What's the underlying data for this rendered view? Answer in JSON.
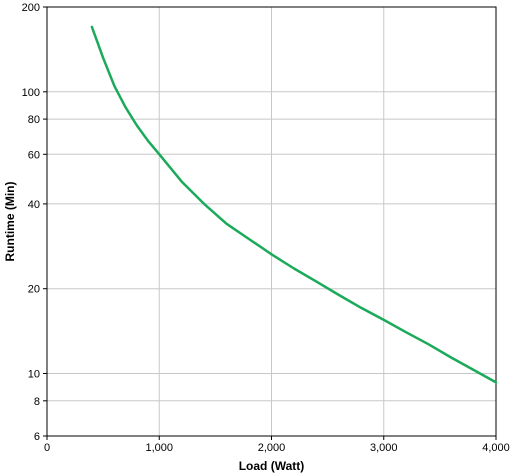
{
  "chart_data": {
    "type": "line",
    "xlabel": "Load (Watt)",
    "ylabel": "Runtime (Min)",
    "xlim": [
      0,
      4000
    ],
    "ylim": [
      6,
      200
    ],
    "yscale": "log",
    "grid": true,
    "x_ticks": [
      {
        "value": 0,
        "label": "0"
      },
      {
        "value": 1000,
        "label": "1,000"
      },
      {
        "value": 2000,
        "label": "2,000"
      },
      {
        "value": 3000,
        "label": "3,000"
      },
      {
        "value": 4000,
        "label": "4,000"
      }
    ],
    "y_ticks": [
      {
        "value": 6,
        "label": "6"
      },
      {
        "value": 8,
        "label": "8"
      },
      {
        "value": 10,
        "label": "10"
      },
      {
        "value": 20,
        "label": "20"
      },
      {
        "value": 40,
        "label": "40"
      },
      {
        "value": 60,
        "label": "60"
      },
      {
        "value": 80,
        "label": "80"
      },
      {
        "value": 100,
        "label": "100"
      },
      {
        "value": 200,
        "label": "200"
      }
    ],
    "series": [
      {
        "color": "#1aaa5a",
        "points": [
          [
            400,
            170
          ],
          [
            500,
            132
          ],
          [
            600,
            105
          ],
          [
            700,
            88
          ],
          [
            800,
            76
          ],
          [
            900,
            67
          ],
          [
            1000,
            60
          ],
          [
            1200,
            48
          ],
          [
            1400,
            40
          ],
          [
            1600,
            34
          ],
          [
            1800,
            30
          ],
          [
            2000,
            26.5
          ],
          [
            2200,
            23.6
          ],
          [
            2400,
            21.2
          ],
          [
            2600,
            19
          ],
          [
            2800,
            17.1
          ],
          [
            3000,
            15.5
          ],
          [
            3200,
            14
          ],
          [
            3400,
            12.7
          ],
          [
            3600,
            11.4
          ],
          [
            3800,
            10.3
          ],
          [
            4000,
            9.3
          ]
        ]
      }
    ]
  }
}
